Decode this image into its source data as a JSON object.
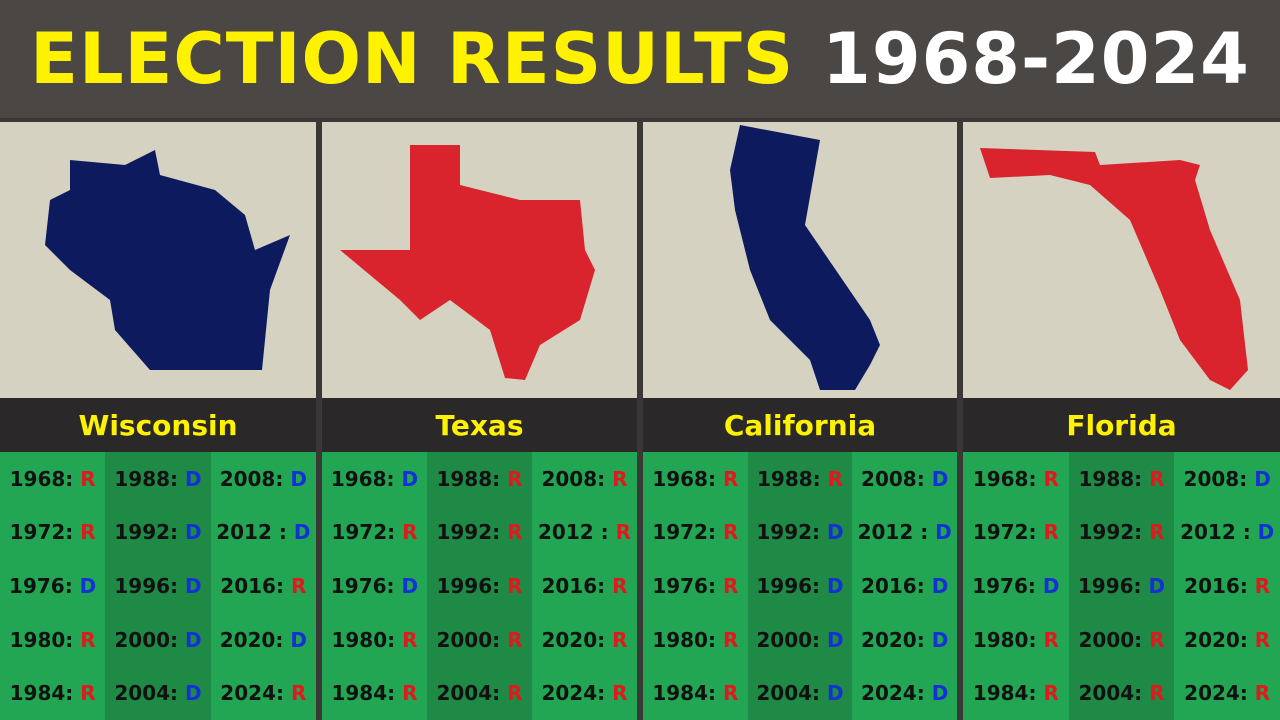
{
  "title": {
    "main": "ELECTION RESULTS",
    "years": "1968-2024"
  },
  "panels": [
    {
      "state": "Wisconsin",
      "results": [
        [
          {
            "year": "1968:",
            "result": "R"
          },
          {
            "year": "1972:",
            "result": "R"
          },
          {
            "year": "1976:",
            "result": "D"
          },
          {
            "year": "1980:",
            "result": "R"
          },
          {
            "year": "1984:",
            "result": "R"
          }
        ],
        [
          {
            "year": "1988:",
            "result": "D"
          },
          {
            "year": "1992:",
            "result": "D"
          },
          {
            "year": "1996:",
            "result": "D"
          },
          {
            "year": "2000:",
            "result": "D"
          },
          {
            "year": "2004:",
            "result": "D"
          }
        ],
        [
          {
            "year": "2008:",
            "result": "D"
          },
          {
            "year": "2012 :",
            "result": "D"
          },
          {
            "year": "2016:",
            "result": "R"
          },
          {
            "year": "2020:",
            "result": "D"
          },
          {
            "year": "2024:",
            "result": "R"
          }
        ]
      ]
    },
    {
      "state": "Texas",
      "results": [
        [
          {
            "year": "1968:",
            "result": "D"
          },
          {
            "year": "1972:",
            "result": "R"
          },
          {
            "year": "1976:",
            "result": "D"
          },
          {
            "year": "1980:",
            "result": "R"
          },
          {
            "year": "1984:",
            "result": "R"
          }
        ],
        [
          {
            "year": "1988:",
            "result": "R"
          },
          {
            "year": "1992:",
            "result": "R"
          },
          {
            "year": "1996:",
            "result": "R"
          },
          {
            "year": "2000:",
            "result": "R"
          },
          {
            "year": "2004:",
            "result": "R"
          }
        ],
        [
          {
            "year": "2008:",
            "result": "R"
          },
          {
            "year": "2012 :",
            "result": "R"
          },
          {
            "year": "2016:",
            "result": "R"
          },
          {
            "year": "2020:",
            "result": "R"
          },
          {
            "year": "2024:",
            "result": "R"
          }
        ]
      ]
    },
    {
      "state": "California",
      "results": [
        [
          {
            "year": "1968:",
            "result": "R"
          },
          {
            "year": "1972:",
            "result": "R"
          },
          {
            "year": "1976:",
            "result": "R"
          },
          {
            "year": "1980:",
            "result": "R"
          },
          {
            "year": "1984:",
            "result": "R"
          }
        ],
        [
          {
            "year": "1988:",
            "result": "R"
          },
          {
            "year": "1992:",
            "result": "D"
          },
          {
            "year": "1996:",
            "result": "D"
          },
          {
            "year": "2000:",
            "result": "D"
          },
          {
            "year": "2004:",
            "result": "D"
          }
        ],
        [
          {
            "year": "2008:",
            "result": "D"
          },
          {
            "year": "2012 :",
            "result": "D"
          },
          {
            "year": "2016:",
            "result": "D"
          },
          {
            "year": "2020:",
            "result": "D"
          },
          {
            "year": "2024:",
            "result": "D"
          }
        ]
      ]
    },
    {
      "state": "Florida",
      "results": [
        [
          {
            "year": "1968:",
            "result": "R"
          },
          {
            "year": "1972:",
            "result": "R"
          },
          {
            "year": "1976:",
            "result": "D"
          },
          {
            "year": "1980:",
            "result": "R"
          },
          {
            "year": "1984:",
            "result": "R"
          }
        ],
        [
          {
            "year": "1988:",
            "result": "R"
          },
          {
            "year": "1992:",
            "result": "R"
          },
          {
            "year": "1996:",
            "result": "D"
          },
          {
            "year": "2000:",
            "result": "R"
          },
          {
            "year": "2004:",
            "result": "R"
          }
        ],
        [
          {
            "year": "2008:",
            "result": "D"
          },
          {
            "year": "2012 :",
            "result": "D"
          },
          {
            "year": "2016:",
            "result": "R"
          },
          {
            "year": "2020:",
            "result": "R"
          },
          {
            "year": "2024:",
            "result": "R"
          }
        ]
      ]
    }
  ]
}
